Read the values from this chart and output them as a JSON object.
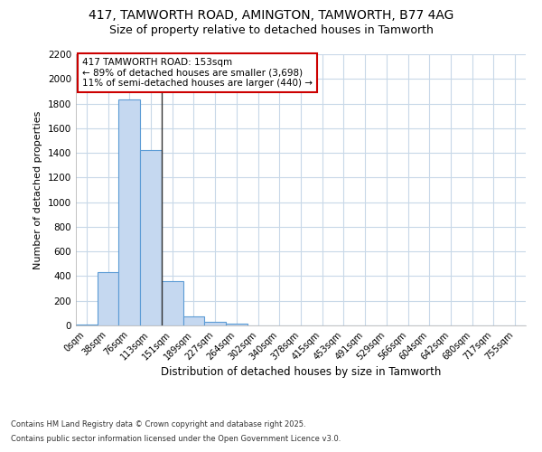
{
  "title_line1": "417, TAMWORTH ROAD, AMINGTON, TAMWORTH, B77 4AG",
  "title_line2": "Size of property relative to detached houses in Tamworth",
  "xlabel": "Distribution of detached houses by size in Tamworth",
  "ylabel": "Number of detached properties",
  "bin_labels": [
    "0sqm",
    "38sqm",
    "76sqm",
    "113sqm",
    "151sqm",
    "189sqm",
    "227sqm",
    "264sqm",
    "302sqm",
    "340sqm",
    "378sqm",
    "415sqm",
    "453sqm",
    "491sqm",
    "529sqm",
    "566sqm",
    "604sqm",
    "642sqm",
    "680sqm",
    "717sqm",
    "755sqm"
  ],
  "bar_values": [
    10,
    430,
    1830,
    1420,
    360,
    75,
    30,
    15,
    0,
    0,
    0,
    0,
    0,
    0,
    0,
    0,
    0,
    0,
    0,
    0,
    0
  ],
  "bar_color": "#c5d8f0",
  "bar_edge_color": "#5b9bd5",
  "background_color": "#ffffff",
  "plot_bg_color": "#ffffff",
  "grid_color": "#c8d8e8",
  "vline_x": 4,
  "vline_color": "#333333",
  "annotation_text": "417 TAMWORTH ROAD: 153sqm\n← 89% of detached houses are smaller (3,698)\n11% of semi-detached houses are larger (440) →",
  "annotation_box_color": "#ffffff",
  "annotation_box_edge": "#cc0000",
  "ylim": [
    0,
    2200
  ],
  "yticks": [
    0,
    200,
    400,
    600,
    800,
    1000,
    1200,
    1400,
    1600,
    1800,
    2000,
    2200
  ],
  "footer_line1": "Contains HM Land Registry data © Crown copyright and database right 2025.",
  "footer_line2": "Contains public sector information licensed under the Open Government Licence v3.0.",
  "figsize": [
    6.0,
    5.0
  ],
  "dpi": 100
}
